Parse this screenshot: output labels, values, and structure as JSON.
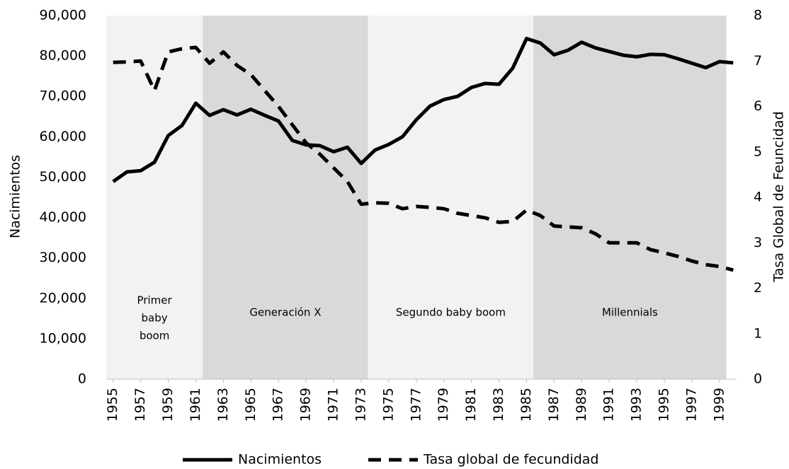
{
  "chart_data": {
    "type": "line",
    "x": [
      1955,
      1956,
      1957,
      1958,
      1959,
      1960,
      1961,
      1962,
      1963,
      1964,
      1965,
      1966,
      1967,
      1968,
      1969,
      1970,
      1971,
      1972,
      1973,
      1974,
      1975,
      1976,
      1977,
      1978,
      1979,
      1980,
      1981,
      1982,
      1983,
      1984,
      1985,
      1986,
      1987,
      1988,
      1989,
      1990,
      1991,
      1992,
      1993,
      1994,
      1995,
      1996,
      1997,
      1998,
      1999,
      2000
    ],
    "xlim": [
      1954.5,
      2000.5
    ],
    "xticks": [
      1955,
      1957,
      1959,
      1961,
      1963,
      1965,
      1967,
      1969,
      1971,
      1973,
      1975,
      1977,
      1979,
      1981,
      1983,
      1985,
      1987,
      1989,
      1991,
      1993,
      1995,
      1997,
      1999
    ],
    "ylabel": "Nacimientos",
    "y2label": "Tasa Global de Feuncidad",
    "ylim": [
      0,
      90000
    ],
    "yticks": [
      0,
      {
        "value": 10000,
        "label": "10,000"
      },
      {
        "value": 20000,
        "label": "20,000"
      },
      {
        "value": 30000,
        "label": "30,000"
      },
      {
        "value": 40000,
        "label": "40,000"
      },
      {
        "value": 50000,
        "label": "50,000"
      },
      {
        "value": 60000,
        "label": "60,000"
      },
      {
        "value": 70000,
        "label": "70,000"
      },
      {
        "value": 80000,
        "label": "80,000"
      },
      {
        "value": 90000,
        "label": "90,000"
      }
    ],
    "y2lim": [
      0,
      8
    ],
    "y2ticks": [
      0,
      1,
      2,
      3,
      4,
      5,
      6,
      7,
      8
    ],
    "periods": [
      {
        "lines": [
          "Primer",
          "baby",
          "boom"
        ],
        "from": 1954.5,
        "to": 1961.5,
        "color": "#f2f2f2"
      },
      {
        "lines": [
          "Generación X"
        ],
        "from": 1961.5,
        "to": 1973.5,
        "color": "#d9d9d9"
      },
      {
        "lines": [
          "Segundo baby boom"
        ],
        "from": 1973.5,
        "to": 1985.5,
        "color": "#f2f2f2"
      },
      {
        "lines": [
          "Millennials"
        ],
        "from": 1985.5,
        "to": 1999.5,
        "color": "#d9d9d9"
      }
    ],
    "series": [
      {
        "name": "Nacimientos",
        "color": "#000000",
        "line_style": "solid",
        "values": [
          48900,
          51300,
          51600,
          53700,
          60300,
          62800,
          68300,
          65300,
          66700,
          65400,
          66800,
          65300,
          63900,
          59100,
          58000,
          57800,
          56300,
          57400,
          53400,
          56700,
          58100,
          60000,
          64200,
          67600,
          69200,
          70000,
          72200,
          73200,
          73000,
          77000,
          84300,
          83200,
          80300,
          81400,
          83400,
          82000,
          81100,
          80200,
          79800,
          80400,
          80300,
          79300,
          78200,
          77100,
          78600,
          78300
        ]
      },
      {
        "name": "Tasa global de fecundidad",
        "color": "#000000",
        "line_style": "dashed",
        "axis": "y2",
        "values": [
          6.97,
          6.98,
          7.0,
          6.35,
          7.2,
          7.27,
          7.3,
          6.95,
          7.2,
          6.9,
          6.7,
          6.35,
          6.0,
          5.6,
          5.2,
          4.95,
          4.65,
          4.35,
          3.85,
          3.88,
          3.87,
          3.75,
          3.8,
          3.78,
          3.75,
          3.65,
          3.6,
          3.55,
          3.45,
          3.47,
          3.72,
          3.6,
          3.37,
          3.35,
          3.33,
          3.2,
          3.0,
          3.0,
          3.0,
          2.85,
          2.78,
          2.7,
          2.6,
          2.52,
          2.48,
          2.4
        ]
      }
    ]
  }
}
